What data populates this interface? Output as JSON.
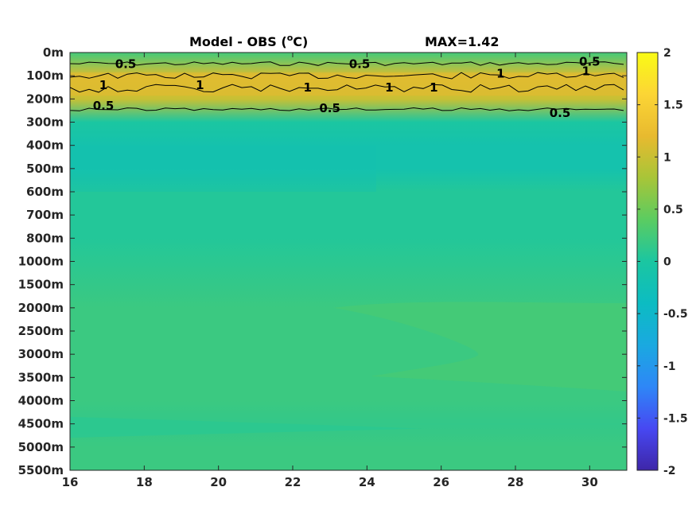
{
  "chart_data": {
    "type": "heatmap",
    "title": "Model - OBS (°C)",
    "title_main": "Model - OBS (",
    "title_degree": "o",
    "title_unit": "C)",
    "max_label": "MAX=1.42",
    "x_ticks": [
      16,
      18,
      20,
      22,
      24,
      26,
      28,
      30
    ],
    "xlim": [
      16,
      31
    ],
    "y_tick_labels": [
      "0m",
      "100m",
      "200m",
      "300m",
      "400m",
      "500m",
      "600m",
      "700m",
      "800m",
      "1000m",
      "1500m",
      "2000m",
      "2500m",
      "3000m",
      "3500m",
      "4000m",
      "4500m",
      "5000m",
      "5500m"
    ],
    "colorbar": {
      "ticks": [
        "2",
        "1.5",
        "1",
        "0.5",
        "0",
        "-0.5",
        "-1",
        "-1.5",
        "-2"
      ],
      "clim": [
        -2,
        2
      ]
    },
    "contour_levels": [
      0.5,
      1
    ],
    "contour_labels": [
      {
        "text": "0.5",
        "x": 17.5,
        "depth": "50m"
      },
      {
        "text": "0.5",
        "x": 23.8,
        "depth": "50m"
      },
      {
        "text": "0.5",
        "x": 30.0,
        "depth": "40m"
      },
      {
        "text": "1",
        "x": 16.9,
        "depth": "140m"
      },
      {
        "text": "1",
        "x": 19.5,
        "depth": "140m"
      },
      {
        "text": "1",
        "x": 22.4,
        "depth": "150m"
      },
      {
        "text": "1",
        "x": 24.6,
        "depth": "150m"
      },
      {
        "text": "1",
        "x": 25.8,
        "depth": "150m"
      },
      {
        "text": "1",
        "x": 27.6,
        "depth": "90m"
      },
      {
        "text": "1",
        "x": 29.9,
        "depth": "80m"
      },
      {
        "text": "0.5",
        "x": 16.9,
        "depth": "230m"
      },
      {
        "text": "0.5",
        "x": 23.0,
        "depth": "240m"
      },
      {
        "text": "0.5",
        "x": 29.2,
        "depth": "260m"
      }
    ],
    "depth_profile_degC": [
      {
        "depth": "0m",
        "value": 0.25
      },
      {
        "depth": "100m",
        "value": 1.1
      },
      {
        "depth": "200m",
        "value": 1.0
      },
      {
        "depth": "300m",
        "value": 0.0
      },
      {
        "depth": "400m",
        "value": -0.15
      },
      {
        "depth": "500m",
        "value": -0.15
      },
      {
        "depth": "600m",
        "value": 0.05
      },
      {
        "depth": "700m",
        "value": 0.05
      },
      {
        "depth": "800m",
        "value": 0.05
      },
      {
        "depth": "1000m",
        "value": 0.1
      },
      {
        "depth": "1500m",
        "value": 0.15
      },
      {
        "depth": "2000m",
        "value": 0.2
      },
      {
        "depth": "2500m",
        "value": 0.2
      },
      {
        "depth": "3000m",
        "value": 0.2
      },
      {
        "depth": "3500m",
        "value": 0.2
      },
      {
        "depth": "4000m",
        "value": 0.2
      },
      {
        "depth": "4500m",
        "value": 0.15
      },
      {
        "depth": "5000m",
        "value": 0.2
      },
      {
        "depth": "5500m",
        "value": 0.2
      }
    ],
    "colors": {
      "colormap": [
        "#3e26a8",
        "#4748f2",
        "#2e87f7",
        "#1aa9e0",
        "#0cbcc2",
        "#1bc6a1",
        "#5bcc61",
        "#a8c538",
        "#e8ba2f",
        "#fcd535",
        "#f9fb15"
      ]
    }
  }
}
